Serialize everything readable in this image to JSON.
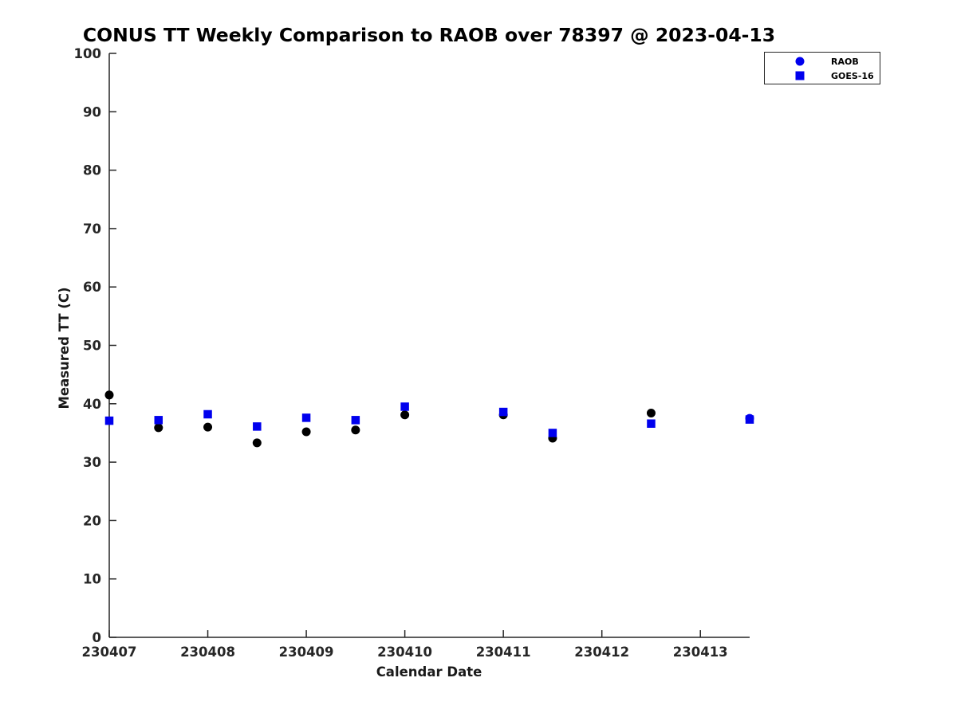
{
  "chart_data": {
    "type": "scatter",
    "title": "CONUS TT Weekly Comparison to RAOB over 78397 @ 2023-04-13",
    "xlabel": "Calendar Date",
    "ylabel": "Measured TT (C)",
    "x_tick_labels": [
      "230407",
      "230408",
      "230409",
      "230410",
      "230411",
      "230412",
      "230413"
    ],
    "x_tick_days": [
      0,
      1,
      2,
      3,
      4,
      5,
      6
    ],
    "xlim_days": [
      0,
      6.5
    ],
    "ylim": [
      0,
      100
    ],
    "y_ticks": [
      0,
      10,
      20,
      30,
      40,
      50,
      60,
      70,
      80,
      90,
      100
    ],
    "grid": false,
    "axis_color": "#262626",
    "blue": "#0000EE",
    "black": "#000000",
    "series": [
      {
        "name": "RAOB",
        "marker": "circle",
        "marker_size": 11,
        "x_days": [
          0,
          0.5,
          1,
          1.5,
          2,
          2.5,
          3,
          4,
          4.5,
          5.5,
          6.5
        ],
        "x_dates": [
          230407,
          230407.5,
          230408,
          230408.5,
          230409,
          230409.5,
          230410,
          230411,
          230411.5,
          230412.5,
          230413.5
        ],
        "values": [
          41.5,
          35.9,
          36.0,
          33.3,
          35.2,
          35.5,
          38.1,
          38.1,
          34.1,
          38.4,
          37.5
        ],
        "point_colors": [
          "#000000",
          "#000000",
          "#000000",
          "#000000",
          "#000000",
          "#000000",
          "#000000",
          "#000000",
          "#000000",
          "#000000",
          "#0000EE"
        ]
      },
      {
        "name": "GOES-16",
        "marker": "square",
        "marker_size": 10.5,
        "color": "#0000EE",
        "x_days": [
          0,
          0.5,
          1,
          1.5,
          2,
          2.5,
          3,
          4,
          4.5,
          5.5,
          6.5
        ],
        "x_dates": [
          230407,
          230407.5,
          230408,
          230408.5,
          230409,
          230409.5,
          230410,
          230411,
          230411.5,
          230412.5,
          230413.5
        ],
        "values": [
          37.1,
          37.2,
          38.2,
          36.1,
          37.6,
          37.2,
          39.5,
          38.6,
          35.0,
          36.6,
          37.3
        ]
      }
    ],
    "legend": {
      "position": "top-right",
      "entries": [
        {
          "label": "RAOB",
          "marker": "circle",
          "color": "#0000EE"
        },
        {
          "label": "GOES-16",
          "marker": "square",
          "color": "#0000EE"
        }
      ]
    }
  }
}
